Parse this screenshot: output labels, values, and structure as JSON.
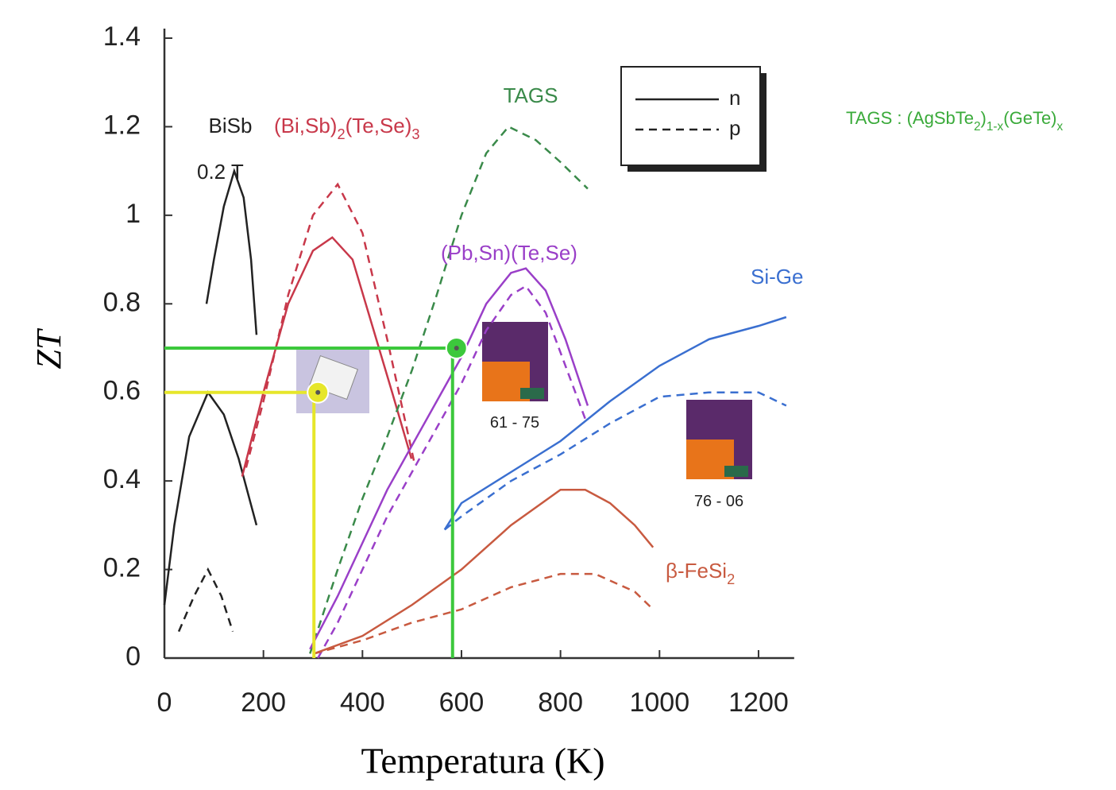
{
  "chart_data": {
    "type": "line",
    "xlabel": "Temperatura (K)",
    "ylabel": "ZT",
    "xlim": [
      0,
      1272
    ],
    "ylim": [
      0,
      1.4
    ],
    "xticks": [
      0,
      200,
      400,
      600,
      800,
      1000,
      1200
    ],
    "yticks": [
      0,
      0.2,
      0.4,
      0.6,
      0.8,
      1,
      1.2,
      1.4
    ],
    "legend": [
      {
        "label": "n",
        "dash": false
      },
      {
        "label": "p",
        "dash": true
      }
    ],
    "series": [
      {
        "color": "#222222",
        "dash": false,
        "x": [
          85,
          100,
          120,
          141,
          160,
          175,
          186
        ],
        "values": [
          0.8,
          0.9,
          1.02,
          1.1,
          1.04,
          0.9,
          0.73
        ]
      },
      {
        "color": "#222222",
        "dash": false,
        "x": [
          0,
          20,
          50,
          88,
          120,
          150,
          186
        ],
        "values": [
          0.12,
          0.3,
          0.5,
          0.6,
          0.55,
          0.45,
          0.3
        ]
      },
      {
        "color": "#222222",
        "dash": true,
        "x": [
          29,
          60,
          88,
          115,
          138
        ],
        "values": [
          0.06,
          0.14,
          0.2,
          0.14,
          0.06
        ]
      },
      {
        "color": "#c8384a",
        "dash": false,
        "x": [
          157,
          200,
          250,
          300,
          339,
          380,
          420,
          460,
          499
        ],
        "values": [
          0.41,
          0.6,
          0.8,
          0.92,
          0.95,
          0.9,
          0.75,
          0.6,
          0.45
        ]
      },
      {
        "color": "#c8384a",
        "dash": true,
        "x": [
          165,
          200,
          250,
          300,
          350,
          400,
          450,
          505
        ],
        "values": [
          0.43,
          0.58,
          0.82,
          1.0,
          1.07,
          0.96,
          0.72,
          0.44
        ]
      },
      {
        "color": "#3a8a4a",
        "dash": true,
        "x": [
          294,
          350,
          400,
          450,
          500,
          550,
          600,
          650,
          695,
          750,
          800,
          855
        ],
        "values": [
          0.01,
          0.2,
          0.36,
          0.5,
          0.65,
          0.82,
          1.0,
          1.14,
          1.2,
          1.17,
          1.12,
          1.06
        ]
      },
      {
        "color": "#9a3fc8",
        "dash": false,
        "x": [
          294,
          350,
          400,
          450,
          500,
          550,
          600,
          650,
          700,
          730,
          770,
          810,
          855
        ],
        "values": [
          0.02,
          0.14,
          0.26,
          0.38,
          0.48,
          0.58,
          0.68,
          0.8,
          0.87,
          0.88,
          0.83,
          0.72,
          0.57
        ]
      },
      {
        "color": "#9a3fc8",
        "dash": true,
        "x": [
          310,
          350,
          400,
          450,
          500,
          550,
          600,
          650,
          700,
          730,
          770,
          810,
          850
        ],
        "values": [
          0.0,
          0.08,
          0.2,
          0.32,
          0.42,
          0.52,
          0.62,
          0.74,
          0.82,
          0.84,
          0.78,
          0.66,
          0.54
        ]
      },
      {
        "color": "#3a6fd0",
        "dash": false,
        "x": [
          566,
          600,
          700,
          800,
          900,
          1000,
          1100,
          1200,
          1256
        ],
        "values": [
          0.29,
          0.35,
          0.42,
          0.49,
          0.58,
          0.66,
          0.72,
          0.75,
          0.77
        ]
      },
      {
        "color": "#3a6fd0",
        "dash": true,
        "x": [
          566,
          600,
          700,
          800,
          900,
          1000,
          1100,
          1200,
          1256
        ],
        "values": [
          0.29,
          0.32,
          0.4,
          0.46,
          0.53,
          0.59,
          0.6,
          0.6,
          0.57
        ]
      },
      {
        "color": "#c85a40",
        "dash": false,
        "x": [
          302,
          400,
          500,
          600,
          700,
          800,
          850,
          900,
          950,
          987
        ],
        "values": [
          0.01,
          0.05,
          0.12,
          0.2,
          0.3,
          0.38,
          0.38,
          0.35,
          0.3,
          0.25
        ]
      },
      {
        "color": "#c85a40",
        "dash": true,
        "x": [
          302,
          400,
          500,
          600,
          700,
          800,
          870,
          950,
          987
        ],
        "values": [
          0.01,
          0.04,
          0.08,
          0.11,
          0.16,
          0.19,
          0.19,
          0.15,
          0.11
        ]
      }
    ],
    "annotations": [
      {
        "color": "#222222",
        "parts": [
          "BiSb"
        ]
      },
      {
        "color": "#222222",
        "parts": [
          "0.2 T"
        ]
      },
      {
        "color": "#c8384a",
        "parts": [
          "(Bi,Sb)",
          "2",
          "(Te,Se)",
          "3"
        ]
      },
      {
        "color": "#3a8a4a",
        "parts": [
          "TAGS"
        ]
      },
      {
        "color": "#9a3fc8",
        "parts": [
          "(Pb,Sn)(Te,Se)"
        ]
      },
      {
        "color": "#3a6fd0",
        "parts": [
          "Si-Ge"
        ]
      },
      {
        "color": "#c85a40",
        "parts": [
          "β-FeSi",
          "2"
        ]
      },
      {
        "color": "#3aaa3a",
        "parts": [
          "TAGS : (AgSbTe",
          "2",
          ")",
          "1-x",
          "(GeTe)",
          "x"
        ]
      },
      {
        "color": "#222222",
        "parts": [
          "61 - 75"
        ]
      },
      {
        "color": "#222222",
        "parts": [
          "76 - 06"
        ]
      }
    ],
    "highlights": [
      {
        "x": 590,
        "y": 0.7,
        "color": "#3cc83c"
      },
      {
        "x": 310,
        "y": 0.6,
        "color": "#e6e62a"
      }
    ]
  }
}
